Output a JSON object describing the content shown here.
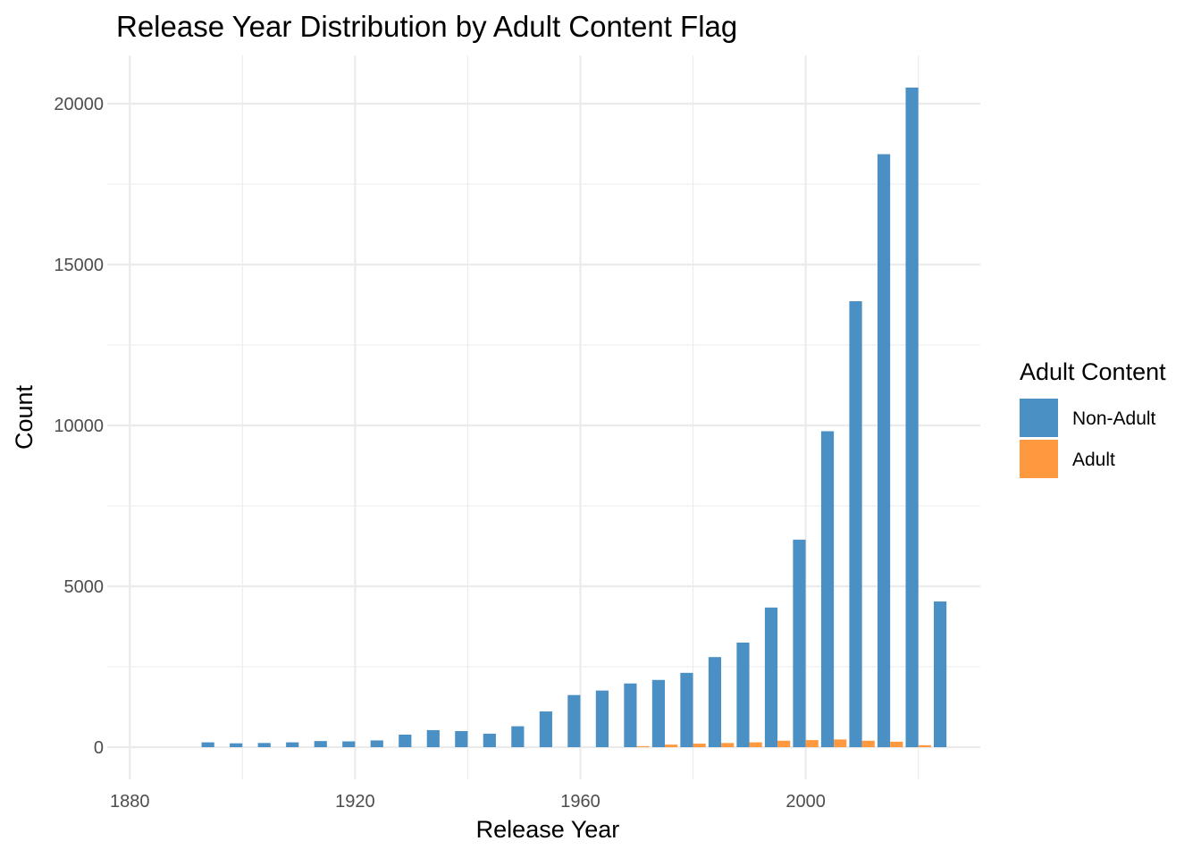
{
  "chart_data": {
    "type": "bar",
    "title": "Release Year Distribution by Adult Content Flag",
    "xlabel": "Release Year",
    "ylabel": "Count",
    "x_ticks": [
      1880,
      1920,
      1960,
      2000
    ],
    "y_ticks": [
      0,
      5000,
      10000,
      15000,
      20000
    ],
    "xlim": [
      1876,
      2031
    ],
    "ylim": [
      -1000,
      21500
    ],
    "bin_width": 5,
    "grid": true,
    "legend": {
      "title": "Adult Content",
      "position": "right"
    },
    "x": [
      1895,
      1900,
      1905,
      1910,
      1915,
      1920,
      1925,
      1930,
      1935,
      1940,
      1945,
      1950,
      1955,
      1960,
      1965,
      1970,
      1975,
      1980,
      1985,
      1990,
      1995,
      2000,
      2005,
      2010,
      2015,
      2020,
      2025
    ],
    "series": [
      {
        "name": "Non-Adult",
        "color": "#4A90C4",
        "values": [
          150,
          120,
          130,
          150,
          190,
          180,
          210,
          390,
          530,
          500,
          420,
          650,
          1110,
          1620,
          1760,
          1980,
          2090,
          2310,
          2800,
          3250,
          4340,
          6450,
          9820,
          13860,
          18430,
          20500,
          4530
        ]
      },
      {
        "name": "Adult",
        "color": "#FF9940",
        "values": [
          0,
          0,
          0,
          0,
          0,
          0,
          0,
          0,
          0,
          0,
          0,
          0,
          0,
          0,
          0,
          30,
          80,
          110,
          130,
          150,
          200,
          220,
          240,
          200,
          170,
          60,
          0
        ]
      }
    ]
  }
}
